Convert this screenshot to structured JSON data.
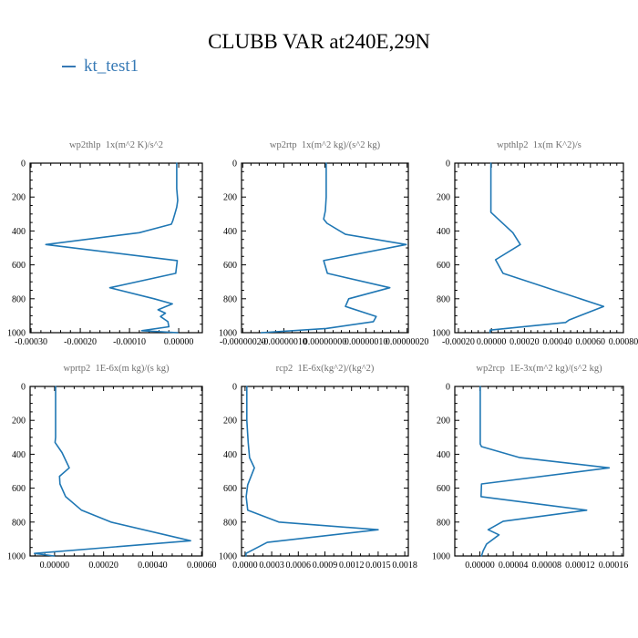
{
  "header": {
    "title": "CLUBB VAR at240E,29N"
  },
  "legend": {
    "label": "kt_test1",
    "color": "#3679b5",
    "marker": "line"
  },
  "style": {
    "line_color": "#1f77b4",
    "axis_color": "#000000",
    "subplot_title_color": "#6e6e6e",
    "background": "#ffffff"
  },
  "chart_data": [
    {
      "type": "line",
      "id": "wp2thlp",
      "title": "wp2thlp  1x(m^2 K)/s^2",
      "xlabel": "",
      "ylabel": "",
      "ylim": [
        0,
        1000
      ],
      "y_inverted": true,
      "y_ticks": [
        0,
        200,
        400,
        600,
        800,
        1000
      ],
      "y_tick_labels": [
        "0",
        "200",
        "400",
        "600",
        "800",
        "1000"
      ],
      "y_minor_step": 50,
      "xlim": [
        -0.000302,
        4.8e-05
      ],
      "x_ticks": [
        -0.0003,
        -0.0002,
        -0.0001,
        0
      ],
      "x_tick_labels": [
        "-0.00030",
        "-0.00020",
        "-0.00010",
        "0.00000"
      ],
      "x_minor_step": 2e-05,
      "grid": false,
      "series": [
        {
          "name": "kt_test1",
          "pressure": [
            0,
            150,
            220,
            260,
            300,
            340,
            360,
            410,
            480,
            575,
            650,
            735,
            800,
            830,
            865,
            885,
            905,
            935,
            965,
            988,
            1000
          ],
          "values": [
            -4e-06,
            -4e-06,
            -2e-06,
            -4e-06,
            -8e-06,
            -1.2e-05,
            -1.5e-05,
            -8e-05,
            -0.00027,
            -3e-06,
            -6e-06,
            -0.00014,
            -5e-05,
            -1.3e-05,
            -4.2e-05,
            -2.7e-05,
            -3.7e-05,
            -2.2e-05,
            -2e-05,
            -7.5e-05,
            -2e-06
          ]
        }
      ]
    },
    {
      "type": "line",
      "id": "wp2rtp",
      "title": "wp2rtp  1x(m^2 kg)/(s^2 kg)",
      "xlabel": "",
      "ylabel": "",
      "ylim": [
        0,
        1000
      ],
      "y_inverted": true,
      "y_ticks": [
        0,
        200,
        400,
        600,
        800,
        1000
      ],
      "y_tick_labels": [
        "0",
        "200",
        "400",
        "600",
        "800",
        "1000"
      ],
      "y_minor_step": 50,
      "xlim": [
        -2.03e-07,
        2.03e-07
      ],
      "x_ticks": [
        -2e-07,
        -1e-07,
        0,
        1e-07,
        2e-07
      ],
      "x_tick_labels": [
        "-0.00000020",
        "-0.00000010",
        "0.00000000",
        "0.00000010",
        "0.00000020"
      ],
      "x_minor_step": 2e-08,
      "grid": false,
      "series": [
        {
          "name": "kt_test1",
          "pressure": [
            0,
            200,
            280,
            330,
            355,
            420,
            480,
            575,
            650,
            735,
            800,
            845,
            905,
            935,
            975,
            1000
          ],
          "values": [
            3e-09,
            3e-09,
            1e-09,
            -3e-09,
            5e-09,
            5e-08,
            1.98e-07,
            -3e-09,
            6e-09,
            1.58e-07,
            5.8e-08,
            5e-08,
            1.25e-07,
            1.18e-07,
            3e-09,
            -1.55e-07
          ]
        }
      ]
    },
    {
      "type": "line",
      "id": "wpthlp2",
      "title": "wpthlp2  1x(m K^2)/s",
      "xlabel": "",
      "ylabel": "",
      "ylim": [
        0,
        1000
      ],
      "y_inverted": true,
      "y_ticks": [
        0,
        200,
        400,
        600,
        800,
        1000
      ],
      "y_tick_labels": [
        "0",
        "200",
        "400",
        "600",
        "800",
        "1000"
      ],
      "y_minor_step": 50,
      "xlim": [
        -0.000222,
        0.0008
      ],
      "x_ticks": [
        -0.0002,
        0,
        0.0002,
        0.0004,
        0.0006,
        0.0008
      ],
      "x_tick_labels": [
        "-0.00020",
        "0.00000",
        "0.00020",
        "0.00040",
        "0.00060",
        "0.00080"
      ],
      "x_minor_step": 4e-05,
      "grid": false,
      "series": [
        {
          "name": "kt_test1",
          "pressure": [
            0,
            290,
            410,
            480,
            570,
            650,
            845,
            925,
            940,
            985,
            1000
          ],
          "values": [
            -3e-06,
            -3e-06,
            0.00013,
            0.000175,
            2.5e-05,
            7e-05,
            0.00068,
            0.00047,
            0.00045,
            -8e-06,
            -8e-06
          ]
        }
      ]
    },
    {
      "type": "line",
      "id": "wprtp2",
      "title": "wprtp2  1E-6x(m kg)/(s kg)",
      "xlabel": "",
      "ylabel": "",
      "ylim": [
        0,
        1000
      ],
      "y_inverted": true,
      "y_ticks": [
        0,
        200,
        400,
        600,
        800,
        1000
      ],
      "y_tick_labels": [
        "0",
        "200",
        "400",
        "600",
        "800",
        "1000"
      ],
      "y_minor_step": 50,
      "xlim": [
        -0.0001,
        0.000603
      ],
      "x_ticks": [
        0,
        0.0002,
        0.0004,
        0.0006
      ],
      "x_tick_labels": [
        "0.00000",
        "0.00020",
        "0.00040",
        "0.00060"
      ],
      "x_minor_step": 4e-05,
      "grid": false,
      "series": [
        {
          "name": "kt_test1",
          "pressure": [
            0,
            300,
            330,
            390,
            480,
            530,
            575,
            650,
            730,
            800,
            910,
            985,
            1000
          ],
          "values": [
            4e-06,
            4e-06,
            2e-06,
            3e-05,
            6e-05,
            2e-05,
            2.2e-05,
            4.5e-05,
            0.00011,
            0.00023,
            0.000555,
            -8.2e-05,
            -2e-06
          ]
        }
      ]
    },
    {
      "type": "line",
      "id": "rcp2",
      "title": "rcp2  1E-6x(kg^2)/(kg^2)",
      "xlabel": "",
      "ylabel": "",
      "ylim": [
        0,
        1000
      ],
      "y_inverted": true,
      "y_ticks": [
        0,
        200,
        400,
        600,
        800,
        1000
      ],
      "y_tick_labels": [
        "0",
        "200",
        "400",
        "600",
        "800",
        "1000"
      ],
      "y_minor_step": 50,
      "xlim": [
        -4e-05,
        0.00184
      ],
      "x_ticks": [
        0,
        0.0003,
        0.0006,
        0.0009,
        0.0012,
        0.0015,
        0.0018
      ],
      "x_tick_labels": [
        "0.0000",
        "0.0003",
        "0.0006",
        "0.0009",
        "0.0012",
        "0.0015",
        "0.0018"
      ],
      "x_minor_step": 0.0001,
      "grid": false,
      "series": [
        {
          "name": "kt_test1",
          "pressure": [
            0,
            200,
            330,
            420,
            480,
            580,
            650,
            730,
            800,
            845,
            920,
            985,
            1000
          ],
          "values": [
            2e-05,
            2e-05,
            3.5e-05,
            5e-05,
            0.000105,
            3e-05,
            1.2e-05,
            3e-05,
            0.00038,
            0.0015,
            0.00025,
            1e-05,
            1e-05
          ]
        }
      ]
    },
    {
      "type": "line",
      "id": "wp2rcp",
      "title": "wp2rcp  1E-3x(m^2 kg)/(s^2 kg)",
      "xlabel": "",
      "ylabel": "",
      "ylim": [
        0,
        1000
      ],
      "y_inverted": true,
      "y_ticks": [
        0,
        200,
        400,
        600,
        800,
        1000
      ],
      "y_tick_labels": [
        "0",
        "200",
        "400",
        "600",
        "800",
        "1000"
      ],
      "y_minor_step": 50,
      "xlim": [
        -3e-05,
        0.000172
      ],
      "x_ticks": [
        0,
        4e-05,
        8e-05,
        0.00012,
        0.00016
      ],
      "x_tick_labels": [
        "0.00000",
        "0.00004",
        "0.00008",
        "0.00012",
        "0.00016"
      ],
      "x_minor_step": 1e-05,
      "grid": false,
      "series": [
        {
          "name": "kt_test1",
          "pressure": [
            0,
            340,
            355,
            420,
            480,
            575,
            650,
            730,
            795,
            845,
            875,
            930,
            970,
            1000
          ],
          "values": [
            5e-07,
            5e-07,
            2e-06,
            4.8e-05,
            0.000155,
            2e-06,
            1.5e-06,
            0.000128,
            2.8e-05,
            1e-05,
            2.3e-05,
            8e-06,
            4e-06,
            2e-06
          ]
        }
      ]
    }
  ]
}
